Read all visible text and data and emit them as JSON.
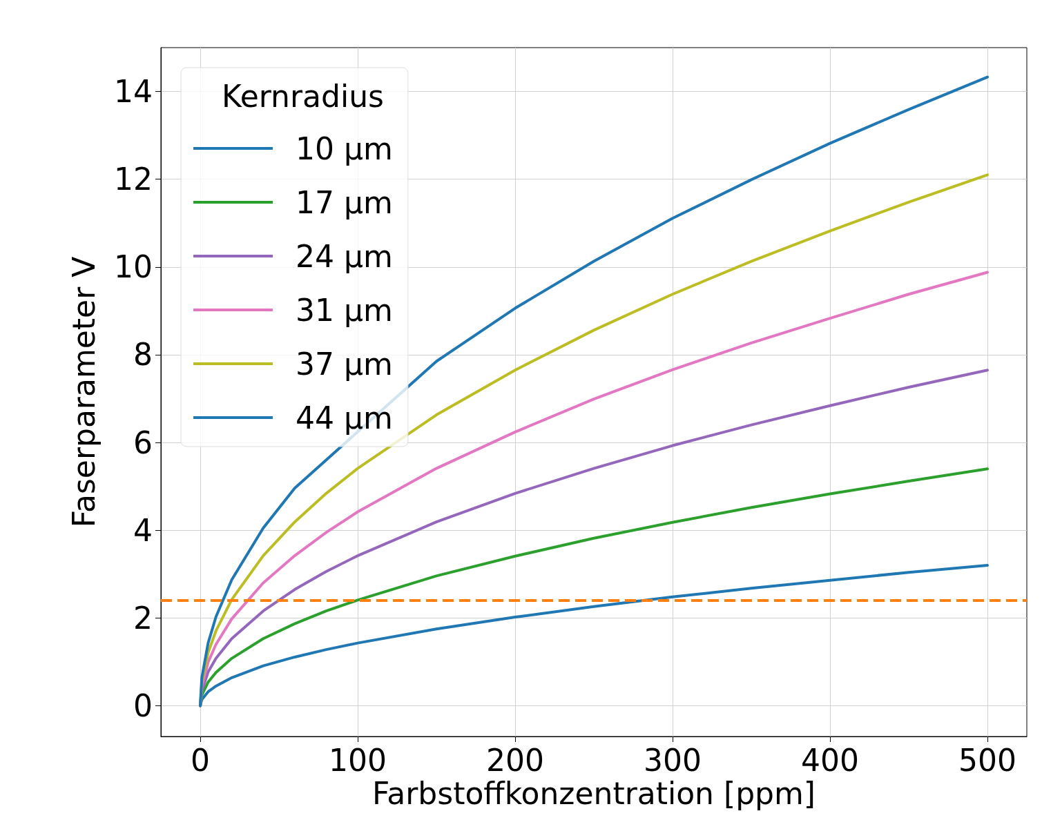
{
  "chart_data": {
    "type": "line",
    "xlabel": "Farbstoffkonzentration [ppm]",
    "ylabel": "Faserparameter V",
    "legend_title": "Kernradius",
    "x": [
      0,
      1,
      5,
      10,
      20,
      40,
      60,
      80,
      100,
      150,
      200,
      250,
      300,
      350,
      400,
      450,
      500
    ],
    "series": [
      {
        "name": "10 µm",
        "color": "#1f77b4",
        "values": [
          0,
          0.14,
          0.32,
          0.45,
          0.64,
          0.91,
          1.11,
          1.28,
          1.43,
          1.75,
          2.02,
          2.26,
          2.48,
          2.68,
          2.86,
          3.04,
          3.2
        ]
      },
      {
        "name": "17 µm",
        "color": "#2ca02c",
        "values": [
          0,
          0.24,
          0.54,
          0.76,
          1.08,
          1.53,
          1.87,
          2.16,
          2.41,
          2.96,
          3.41,
          3.82,
          4.18,
          4.52,
          4.83,
          5.12,
          5.4
        ]
      },
      {
        "name": "24 µm",
        "color": "#9467bd",
        "values": [
          0,
          0.34,
          0.77,
          1.08,
          1.53,
          2.16,
          2.65,
          3.06,
          3.42,
          4.19,
          4.84,
          5.41,
          5.93,
          6.4,
          6.84,
          7.26,
          7.65
        ]
      },
      {
        "name": "31 µm",
        "color": "#e377c2",
        "values": [
          0,
          0.44,
          0.99,
          1.4,
          1.98,
          2.8,
          3.42,
          3.95,
          4.42,
          5.41,
          6.24,
          6.99,
          7.66,
          8.27,
          8.83,
          9.38,
          9.88
        ]
      },
      {
        "name": "37 µm",
        "color": "#bcbd22",
        "values": [
          0,
          0.54,
          1.21,
          1.71,
          2.42,
          3.42,
          4.19,
          4.84,
          5.41,
          6.63,
          7.65,
          8.56,
          9.38,
          10.13,
          10.82,
          11.48,
          12.1
        ]
      },
      {
        "name": "44 µm",
        "color": "#1f77b4",
        "x": [
          0,
          1,
          5,
          10,
          20,
          40,
          60,
          150,
          200,
          250,
          300,
          350,
          400,
          450,
          500
        ],
        "values": [
          0,
          0.64,
          1.43,
          2.03,
          2.87,
          4.05,
          4.96,
          7.85,
          9.06,
          10.13,
          11.11,
          11.99,
          12.82,
          13.59,
          14.33
        ]
      }
    ],
    "ref_lines": [
      {
        "axis": "y",
        "value": 2.405,
        "color": "#ff7f0e",
        "line_style": "dashed"
      }
    ],
    "xlim": [
      -25,
      525
    ],
    "xticks": [
      0,
      100,
      200,
      300,
      400,
      500
    ],
    "ylim": [
      -0.7,
      15
    ],
    "yticks": [
      0,
      2,
      4,
      6,
      8,
      10,
      12,
      14
    ],
    "grid": true,
    "legend": "top left",
    "marker": "none",
    "line_style": "solid"
  }
}
